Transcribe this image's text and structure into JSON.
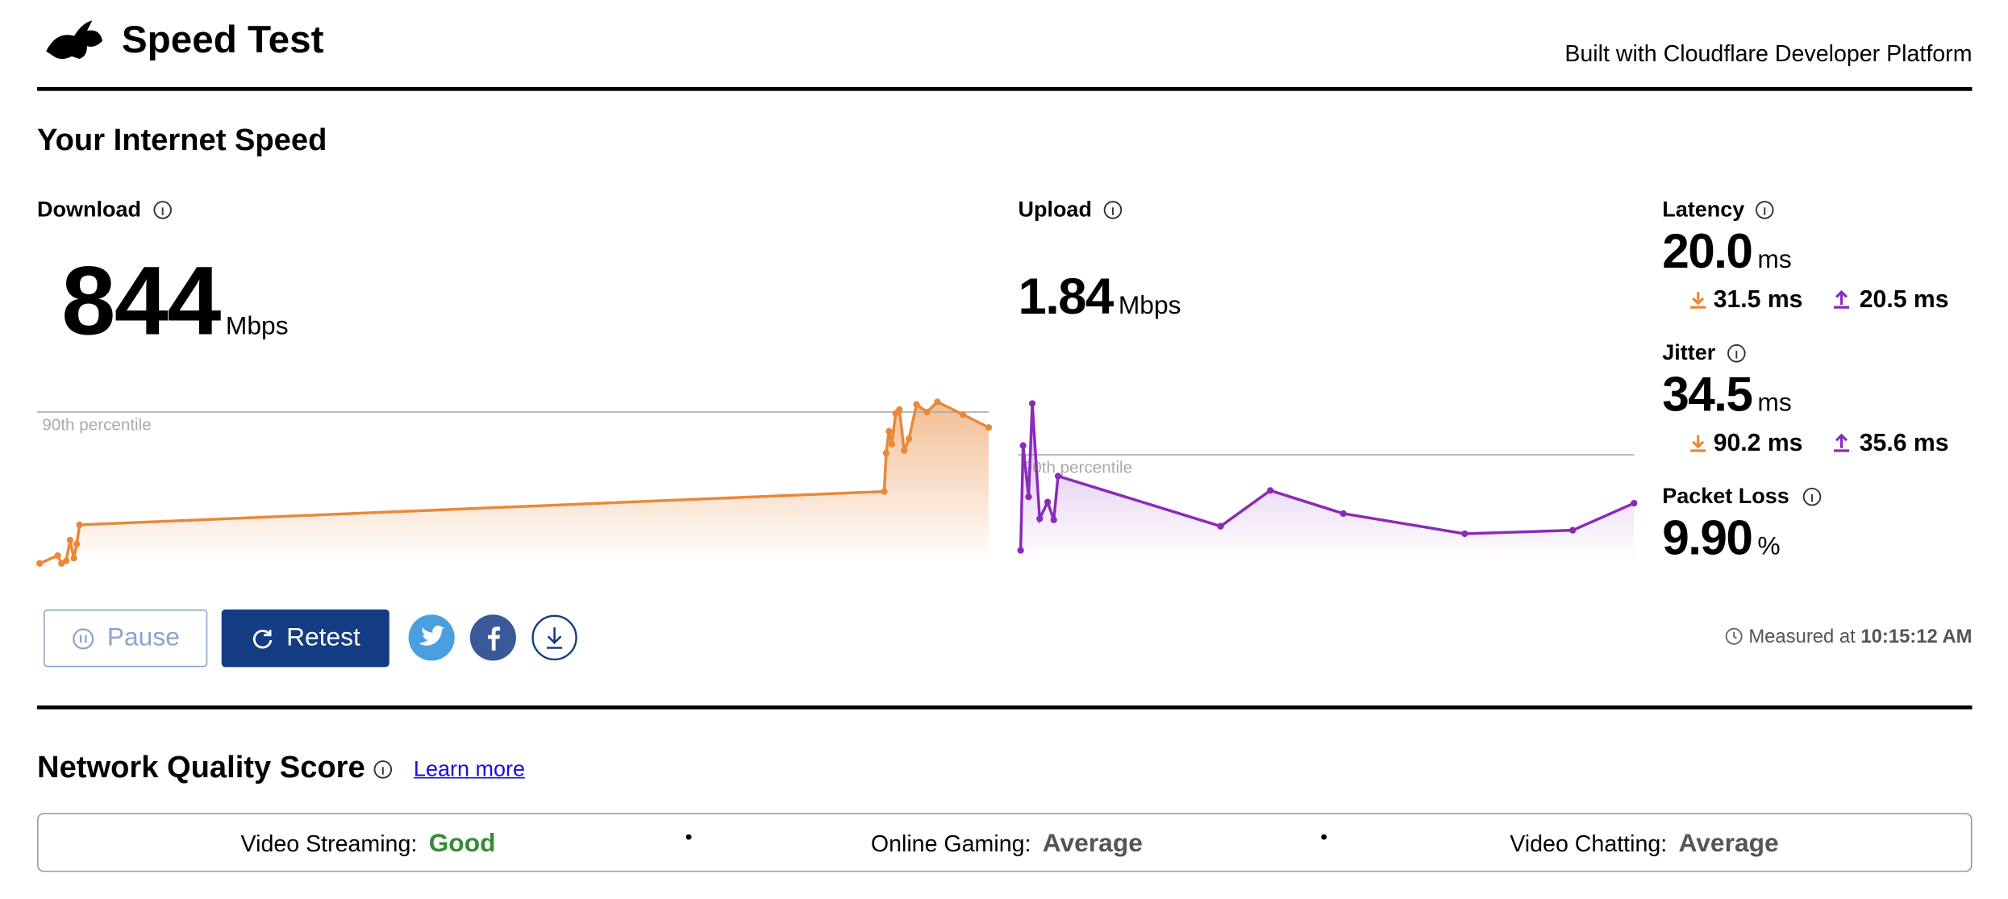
{
  "header": {
    "title": "Speed Test",
    "tagline": "Built with Cloudflare Developer Platform"
  },
  "summary": {
    "title": "Your Internet Speed",
    "download": {
      "label": "Download",
      "value": "844",
      "unit": "Mbps",
      "chart": {
        "type": "line",
        "color": "#e8893a",
        "xlim": [
          0,
          100
        ],
        "ylim": [
          0,
          1000
        ],
        "x": [
          0,
          1.9,
          2.3,
          2.8,
          3.2,
          3.6,
          3.9,
          4.2,
          89.0,
          89.2,
          89.5,
          89.8,
          90.2,
          90.6,
          91.1,
          91.6,
          92.4,
          93.5,
          94.6,
          97.3,
          100
        ],
        "values": [
          0,
          43,
          0,
          14,
          129,
          29,
          107,
          215,
          401,
          615,
          737,
          665,
          837,
          858,
          629,
          694,
          887,
          844,
          901,
          830,
          758
        ],
        "percentile": {
          "label": "90th percentile",
          "value": 844
        }
      }
    },
    "upload": {
      "label": "Upload",
      "value": "1.84",
      "unit": "Mbps",
      "chart": {
        "type": "line",
        "color": "#8a2bb8",
        "xlim": [
          0,
          100
        ],
        "ylim": [
          0,
          3
        ],
        "x": [
          0,
          0.4,
          1.3,
          1.9,
          3.1,
          4.4,
          5.4,
          6.1,
          32.6,
          40.7,
          52.6,
          72.4,
          90.0,
          100
        ],
        "values": [
          0.18,
          2.0,
          1.11,
          2.73,
          0.73,
          1.02,
          0.71,
          1.47,
          0.6,
          1.22,
          0.82,
          0.47,
          0.53,
          1.0
        ],
        "percentile": {
          "label": "90th percentile",
          "value": 1.84
        }
      }
    },
    "latency": {
      "label": "Latency",
      "value": "20.0",
      "unit": "ms",
      "down": "31.5 ms",
      "up": "20.5 ms"
    },
    "jitter": {
      "label": "Jitter",
      "value": "34.5",
      "unit": "ms",
      "down": "90.2 ms",
      "up": "35.6 ms"
    },
    "packet_loss": {
      "label": "Packet Loss",
      "value": "9.90",
      "unit": "%"
    }
  },
  "controls": {
    "pause": "Pause",
    "retest": "Retest",
    "measured_label": "Measured at",
    "measured_time": "10:15:12 AM"
  },
  "quality": {
    "title": "Network Quality Score",
    "link": "Learn more",
    "items": [
      {
        "label": "Video Streaming:",
        "rating": "Good"
      },
      {
        "label": "Online Gaming:",
        "rating": "Average"
      },
      {
        "label": "Video Chatting:",
        "rating": "Average"
      }
    ]
  }
}
